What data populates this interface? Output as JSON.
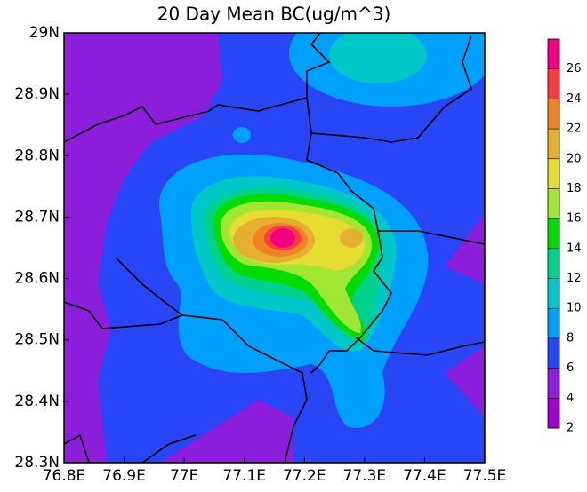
{
  "chart_data": {
    "type": "contour",
    "title": "20 Day Mean BC(ug/m^3)",
    "xlim": [
      76.8,
      77.5
    ],
    "xticks": [
      {
        "value": 76.8,
        "label": "76.8E"
      },
      {
        "value": 76.9,
        "label": "76.9E"
      },
      {
        "value": 77,
        "label": "77E"
      },
      {
        "value": 77.1,
        "label": "77.1E"
      },
      {
        "value": 77.2,
        "label": "77.2E"
      },
      {
        "value": 77.3,
        "label": "77.3E"
      },
      {
        "value": 77.4,
        "label": "77.4E"
      },
      {
        "value": 77.5,
        "label": "77.5E"
      }
    ],
    "ylim": [
      28.3,
      29
    ],
    "yticks": [
      {
        "value": 28.3,
        "label": "28.3N"
      },
      {
        "value": 28.4,
        "label": "28.4N"
      },
      {
        "value": 28.5,
        "label": "28.5N"
      },
      {
        "value": 28.6,
        "label": "28.6N"
      },
      {
        "value": 28.7,
        "label": "28.7N"
      },
      {
        "value": 28.8,
        "label": "28.8N"
      },
      {
        "value": 28.9,
        "label": "28.9N"
      },
      {
        "value": 29,
        "label": "29N"
      }
    ],
    "levels": [
      2,
      4,
      6,
      8,
      10,
      12,
      14,
      16,
      18,
      20,
      22,
      24,
      26
    ],
    "colors": [
      "#a000c8",
      "#8c1edc",
      "#2846f5",
      "#00a0ff",
      "#00c8c8",
      "#00d28c",
      "#00dc00",
      "#a0e632",
      "#e6dc32",
      "#e6af2d",
      "#f08228",
      "#fa3c3c",
      "#f00082"
    ]
  }
}
